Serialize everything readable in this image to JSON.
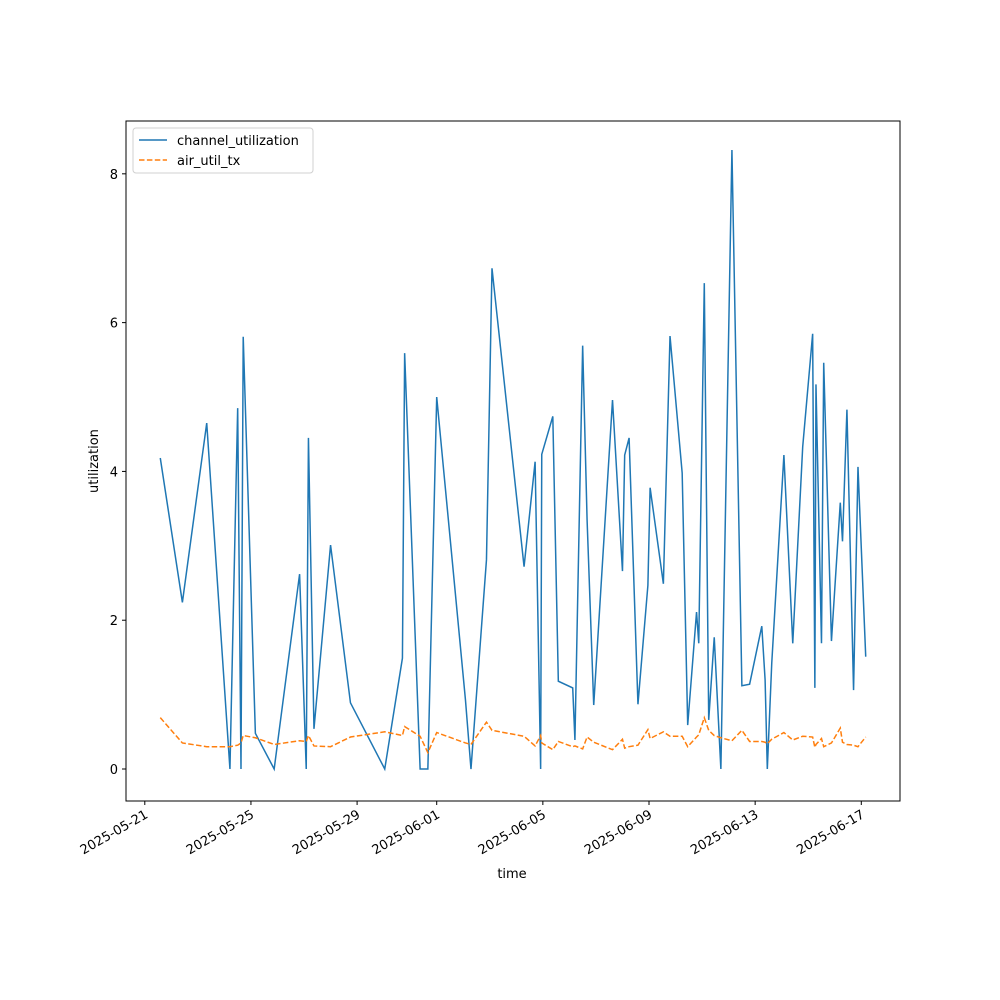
{
  "chart_data": {
    "type": "line",
    "xlabel": "time",
    "ylabel": "utilization",
    "x": [
      "2025-05-21T14:00",
      "2025-05-22T10:00",
      "2025-05-23T08:00",
      "2025-05-24T05:00",
      "2025-05-24T12:00",
      "2025-05-24T15:00",
      "2025-05-24T17:00",
      "2025-05-25T04:00",
      "2025-05-25T21:00",
      "2025-05-26T20:00",
      "2025-05-27T02:00",
      "2025-05-27T04:00",
      "2025-05-27T09:00",
      "2025-05-28T00:00",
      "2025-05-28T18:00",
      "2025-05-30T01:00",
      "2025-05-30T17:00",
      "2025-05-30T19:00",
      "2025-05-31T09:00",
      "2025-05-31T16:00",
      "2025-06-01T00:00",
      "2025-06-02T02:00",
      "2025-06-02T07:00",
      "2025-06-02T21:00",
      "2025-06-03T02:00",
      "2025-06-04T07:00",
      "2025-06-04T17:00",
      "2025-06-04T22:00",
      "2025-06-04T23:00",
      "2025-06-05T09:00",
      "2025-06-05T14:00",
      "2025-06-06T03:00",
      "2025-06-06T05:00",
      "2025-06-06T12:00",
      "2025-06-06T16:00",
      "2025-06-06T22:00",
      "2025-06-07T15:00",
      "2025-06-08T00:00",
      "2025-06-08T02:00",
      "2025-06-08T06:00",
      "2025-06-08T14:00",
      "2025-06-08T23:00",
      "2025-06-09T01:00",
      "2025-06-09T13:00",
      "2025-06-09T19:00",
      "2025-06-10T06:00",
      "2025-06-10T11:00",
      "2025-06-10T19:00",
      "2025-06-10T21:00",
      "2025-06-11T02:00",
      "2025-06-11T06:00",
      "2025-06-11T11:00",
      "2025-06-11T17:00",
      "2025-06-12T03:00",
      "2025-06-12T12:00",
      "2025-06-12T19:00",
      "2025-06-13T06:00",
      "2025-06-13T09:00",
      "2025-06-13T11:00",
      "2025-06-13T15:00",
      "2025-06-14T02:00",
      "2025-06-14T10:00",
      "2025-06-14T19:00",
      "2025-06-15T04:00",
      "2025-06-15T06:00",
      "2025-06-15T07:00",
      "2025-06-15T12:00",
      "2025-06-15T14:00",
      "2025-06-15T21:00",
      "2025-06-16T05:00",
      "2025-06-16T07:00",
      "2025-06-16T11:00",
      "2025-06-16T17:00",
      "2025-06-16T21:00",
      "2025-06-17T04:00"
    ],
    "series": [
      {
        "name": "channel_utilization",
        "color": "#1f77b4",
        "dash": "solid",
        "values": [
          4.18,
          2.24,
          4.65,
          0,
          4.85,
          0,
          5.81,
          0.48,
          0,
          2.62,
          0,
          4.45,
          0.54,
          3.01,
          0.89,
          0,
          1.49,
          5.59,
          0,
          0,
          5.0,
          0.93,
          0,
          2.81,
          6.73,
          2.72,
          4.13,
          0,
          4.23,
          4.74,
          1.18,
          1.09,
          0.39,
          5.69,
          3.35,
          0.86,
          4.96,
          2.66,
          4.22,
          4.45,
          0.87,
          2.47,
          3.78,
          2.49,
          5.82,
          3.98,
          0.59,
          2.11,
          1.69,
          6.53,
          0.66,
          1.77,
          0,
          8.32,
          1.12,
          1.14,
          1.92,
          1.2,
          0,
          1.42,
          4.22,
          1.69,
          4.33,
          5.85,
          1.09,
          5.17,
          1.69,
          5.46,
          1.72,
          3.58,
          3.06,
          4.83,
          1.06,
          4.06,
          1.51
        ]
      },
      {
        "name": "air_util_tx",
        "color": "#ff7f0e",
        "dash": "dashed",
        "values": [
          0.69,
          0.35,
          0.3,
          0.3,
          0.32,
          0.35,
          0.45,
          0.42,
          0.33,
          0.38,
          0.37,
          0.45,
          0.31,
          0.3,
          0.43,
          0.5,
          0.45,
          0.57,
          0.44,
          0.22,
          0.49,
          0.35,
          0.33,
          0.63,
          0.52,
          0.44,
          0.31,
          0.45,
          0.35,
          0.26,
          0.37,
          0.3,
          0.31,
          0.27,
          0.43,
          0.36,
          0.26,
          0.4,
          0.28,
          0.3,
          0.32,
          0.53,
          0.41,
          0.5,
          0.44,
          0.44,
          0.3,
          0.43,
          0.46,
          0.69,
          0.52,
          0.45,
          0.42,
          0.38,
          0.52,
          0.37,
          0.37,
          0.36,
          0.34,
          0.4,
          0.49,
          0.39,
          0.44,
          0.43,
          0.29,
          0.33,
          0.41,
          0.3,
          0.35,
          0.55,
          0.36,
          0.33,
          0.32,
          0.3,
          0.43
        ]
      }
    ],
    "xlim": [
      "2025-05-20T07:00",
      "2025-06-18T11:00"
    ],
    "xticks": [
      "2025-05-21",
      "2025-05-25",
      "2025-05-29",
      "2025-06-01",
      "2025-06-05",
      "2025-06-09",
      "2025-06-13",
      "2025-06-17"
    ],
    "ylim": [
      -0.43,
      8.71
    ],
    "yticks": [
      0,
      2,
      4,
      6,
      8
    ],
    "legend": "upper left",
    "grid": false
  }
}
